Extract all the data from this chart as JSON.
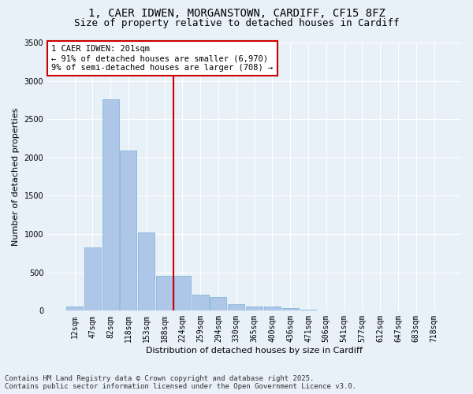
{
  "title_line1": "1, CAER IDWEN, MORGANSTOWN, CARDIFF, CF15 8FZ",
  "title_line2": "Size of property relative to detached houses in Cardiff",
  "xlabel": "Distribution of detached houses by size in Cardiff",
  "ylabel": "Number of detached properties",
  "categories": [
    "12sqm",
    "47sqm",
    "82sqm",
    "118sqm",
    "153sqm",
    "188sqm",
    "224sqm",
    "259sqm",
    "294sqm",
    "330sqm",
    "365sqm",
    "400sqm",
    "436sqm",
    "471sqm",
    "506sqm",
    "541sqm",
    "577sqm",
    "612sqm",
    "647sqm",
    "683sqm",
    "718sqm"
  ],
  "values": [
    55,
    830,
    2760,
    2090,
    1020,
    460,
    455,
    210,
    180,
    90,
    55,
    50,
    30,
    18,
    8,
    5,
    3,
    2,
    1,
    1,
    1
  ],
  "bar_color": "#aec6e8",
  "bar_edge_color": "#7aafd4",
  "vline_x": 5.5,
  "vline_color": "#cc0000",
  "annotation_box_text": "1 CAER IDWEN: 201sqm\n← 91% of detached houses are smaller (6,970)\n9% of semi-detached houses are larger (708) →",
  "annotation_box_color": "#cc0000",
  "annotation_box_bg": "#ffffff",
  "ylim": [
    0,
    3500
  ],
  "yticks": [
    0,
    500,
    1000,
    1500,
    2000,
    2500,
    3000,
    3500
  ],
  "background_color": "#e8f0f8",
  "grid_color": "#ffffff",
  "footer_line1": "Contains HM Land Registry data © Crown copyright and database right 2025.",
  "footer_line2": "Contains public sector information licensed under the Open Government Licence v3.0.",
  "title_fontsize": 10,
  "subtitle_fontsize": 9,
  "axis_label_fontsize": 8,
  "tick_fontsize": 7,
  "annotation_fontsize": 7.5,
  "footer_fontsize": 6.5
}
